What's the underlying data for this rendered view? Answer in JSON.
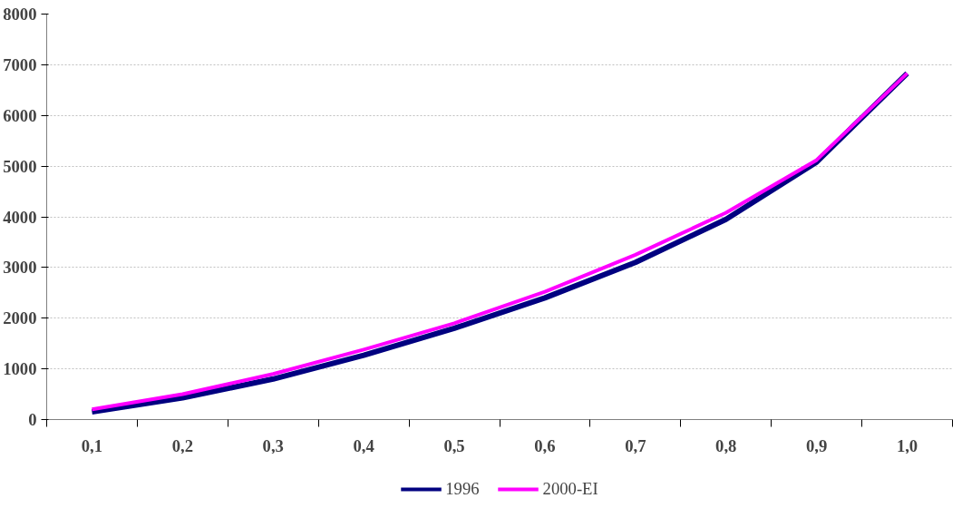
{
  "chart_data": {
    "type": "line",
    "categories": [
      "0,1",
      "0,2",
      "0,3",
      "0,4",
      "0,5",
      "0,6",
      "0,7",
      "0,8",
      "0,9",
      "1,0"
    ],
    "series": [
      {
        "name": "1996",
        "color": "#000080",
        "values": [
          150,
          430,
          800,
          1270,
          1800,
          2400,
          3100,
          3950,
          5080,
          6830
        ]
      },
      {
        "name": "2000-EI",
        "color": "#ff00ff",
        "values": [
          200,
          500,
          900,
          1380,
          1900,
          2520,
          3250,
          4080,
          5120,
          6830
        ]
      }
    ],
    "ylim": [
      0,
      8000
    ],
    "yticks": [
      0,
      1000,
      2000,
      3000,
      4000,
      5000,
      6000,
      7000,
      8000
    ],
    "grid": "y",
    "legend": "bottom",
    "marker": "none",
    "line_style": "solid"
  }
}
